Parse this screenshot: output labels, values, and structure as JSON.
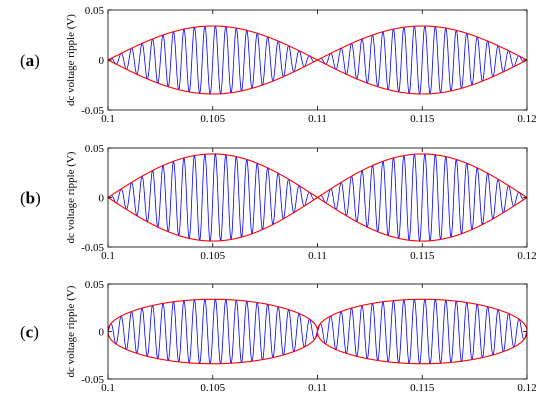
{
  "chart_data": [
    {
      "type": "line",
      "panel_label": "(a)",
      "panel_letter": "a",
      "ylabel": "dc voltage ripple (V)",
      "xlim": [
        0.1,
        0.12
      ],
      "ylim": [
        -0.05,
        0.05
      ],
      "x_ticks": [
        0.1,
        0.105,
        0.11,
        0.115,
        0.12
      ],
      "x_tick_labels": [
        "0.1",
        "0.105",
        "0.11",
        "0.115",
        "0.12"
      ],
      "y_ticks": [
        -0.05,
        0,
        0.05
      ],
      "y_tick_labels": [
        "-0.05",
        "0",
        "0.05"
      ],
      "grid": false,
      "series": [
        {
          "role": "ripple",
          "color": "#0000ff",
          "amplitude": 0.034,
          "envelope_shape": "sinusoidal",
          "carrier_cycles": 40
        },
        {
          "role": "envelope",
          "color": "#ff0000",
          "amplitude": 0.034,
          "envelope_shape": "sinusoidal"
        }
      ]
    },
    {
      "type": "line",
      "panel_label": "(b)",
      "panel_letter": "b",
      "ylabel": "dc voltage ripple (V)",
      "xlim": [
        0.1,
        0.12
      ],
      "ylim": [
        -0.05,
        0.05
      ],
      "x_ticks": [
        0.1,
        0.105,
        0.11,
        0.115,
        0.12
      ],
      "x_tick_labels": [
        "0.1",
        "0.105",
        "0.11",
        "0.115",
        "0.12"
      ],
      "y_ticks": [
        -0.05,
        0,
        0.05
      ],
      "y_tick_labels": [
        "-0.05",
        "0",
        "0.05"
      ],
      "grid": false,
      "series": [
        {
          "role": "ripple",
          "color": "#0000ff",
          "amplitude": 0.044,
          "envelope_shape": "sinusoidal",
          "carrier_cycles": 40
        },
        {
          "role": "envelope",
          "color": "#ff0000",
          "amplitude": 0.044,
          "envelope_shape": "sinusoidal"
        }
      ]
    },
    {
      "type": "line",
      "panel_label": "(c)",
      "panel_letter": "c",
      "ylabel": "dc voltage ripple (V)",
      "xlim": [
        0.1,
        0.12
      ],
      "ylim": [
        -0.05,
        0.05
      ],
      "x_ticks": [
        0.1,
        0.105,
        0.11,
        0.115,
        0.12
      ],
      "x_tick_labels": [
        "0.1",
        "0.105",
        "0.11",
        "0.115",
        "0.12"
      ],
      "y_ticks": [
        -0.05,
        0,
        0.05
      ],
      "y_tick_labels": [
        "-0.05",
        "0",
        "0.05"
      ],
      "grid": false,
      "series": [
        {
          "role": "ripple",
          "color": "#0000ff",
          "amplitude": 0.034,
          "envelope_shape": "flat-top",
          "carrier_cycles": 40
        },
        {
          "role": "envelope",
          "color": "#ff0000",
          "amplitude": 0.034,
          "envelope_shape": "flat-top"
        }
      ]
    }
  ]
}
